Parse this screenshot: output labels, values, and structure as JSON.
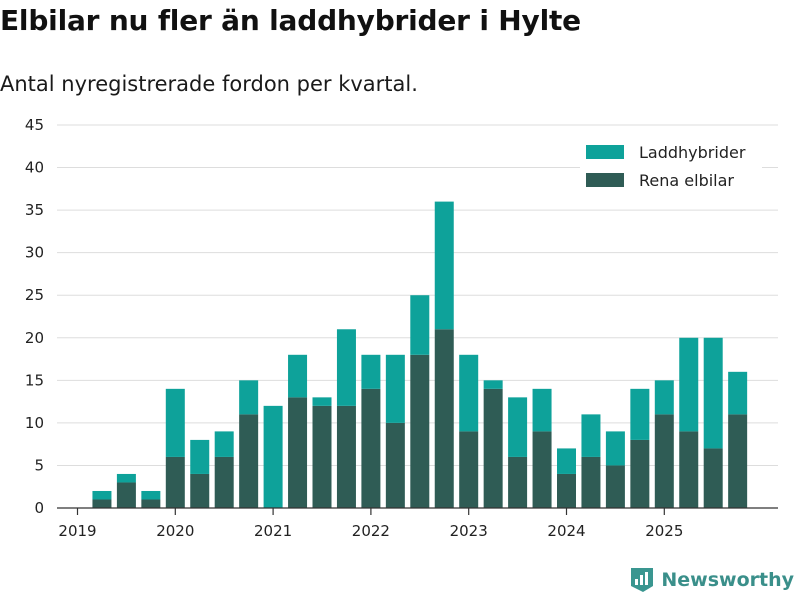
{
  "header": {
    "title": "Elbilar nu fler än laddhybrider i Hylte",
    "subtitle": "Antal nyregistrerade fordon per kvartal."
  },
  "brand": {
    "name": "Newsworthy",
    "icon": "newsworthy-logo-icon",
    "color": "#3a9690"
  },
  "colors": {
    "laddhybrider": "#0ea29a",
    "elbilar": "#2f5c55",
    "grid": "#dddddd",
    "axis": "#333333"
  },
  "chart_data": {
    "type": "bar",
    "stacked": true,
    "title": "Elbilar nu fler än laddhybrider i Hylte",
    "subtitle": "Antal nyregistrerade fordon per kvartal.",
    "xlabel": "",
    "ylabel": "",
    "ylim": [
      0,
      45
    ],
    "yticks": [
      0,
      5,
      10,
      15,
      20,
      25,
      30,
      35,
      40,
      45
    ],
    "xticks": [
      {
        "label": "2019",
        "index": 0
      },
      {
        "label": "2020",
        "index": 4
      },
      {
        "label": "2021",
        "index": 8
      },
      {
        "label": "2022",
        "index": 12
      },
      {
        "label": "2023",
        "index": 16
      },
      {
        "label": "2024",
        "index": 20
      },
      {
        "label": "2025",
        "index": 24
      }
    ],
    "categories": [
      "2019 Q1",
      "2019 Q2",
      "2019 Q3",
      "2019 Q4",
      "2020 Q1",
      "2020 Q2",
      "2020 Q3",
      "2020 Q4",
      "2021 Q1",
      "2021 Q2",
      "2021 Q3",
      "2021 Q4",
      "2022 Q1",
      "2022 Q2",
      "2022 Q3",
      "2022 Q4",
      "2023 Q1",
      "2023 Q2",
      "2023 Q3",
      "2023 Q4",
      "2024 Q1",
      "2024 Q2",
      "2024 Q3",
      "2024 Q4",
      "2025 Q1",
      "2025 Q2",
      "2025 Q3",
      "2025 Q4"
    ],
    "series": [
      {
        "name": "Rena elbilar",
        "key": "elbilar",
        "values": [
          0,
          1,
          3,
          1,
          6,
          4,
          6,
          11,
          0,
          13,
          12,
          12,
          14,
          10,
          18,
          21,
          9,
          14,
          6,
          9,
          4,
          6,
          5,
          8,
          11,
          9,
          7,
          11
        ]
      },
      {
        "name": "Laddhybrider",
        "key": "laddhybrider",
        "values": [
          0,
          1,
          1,
          1,
          8,
          4,
          3,
          4,
          12,
          5,
          1,
          9,
          4,
          8,
          7,
          15,
          9,
          1,
          7,
          5,
          3,
          5,
          4,
          6,
          4,
          11,
          13,
          5
        ]
      }
    ],
    "legend": {
      "position": "top-right",
      "entries": [
        "Laddhybrider",
        "Rena elbilar"
      ]
    },
    "grid": true
  }
}
